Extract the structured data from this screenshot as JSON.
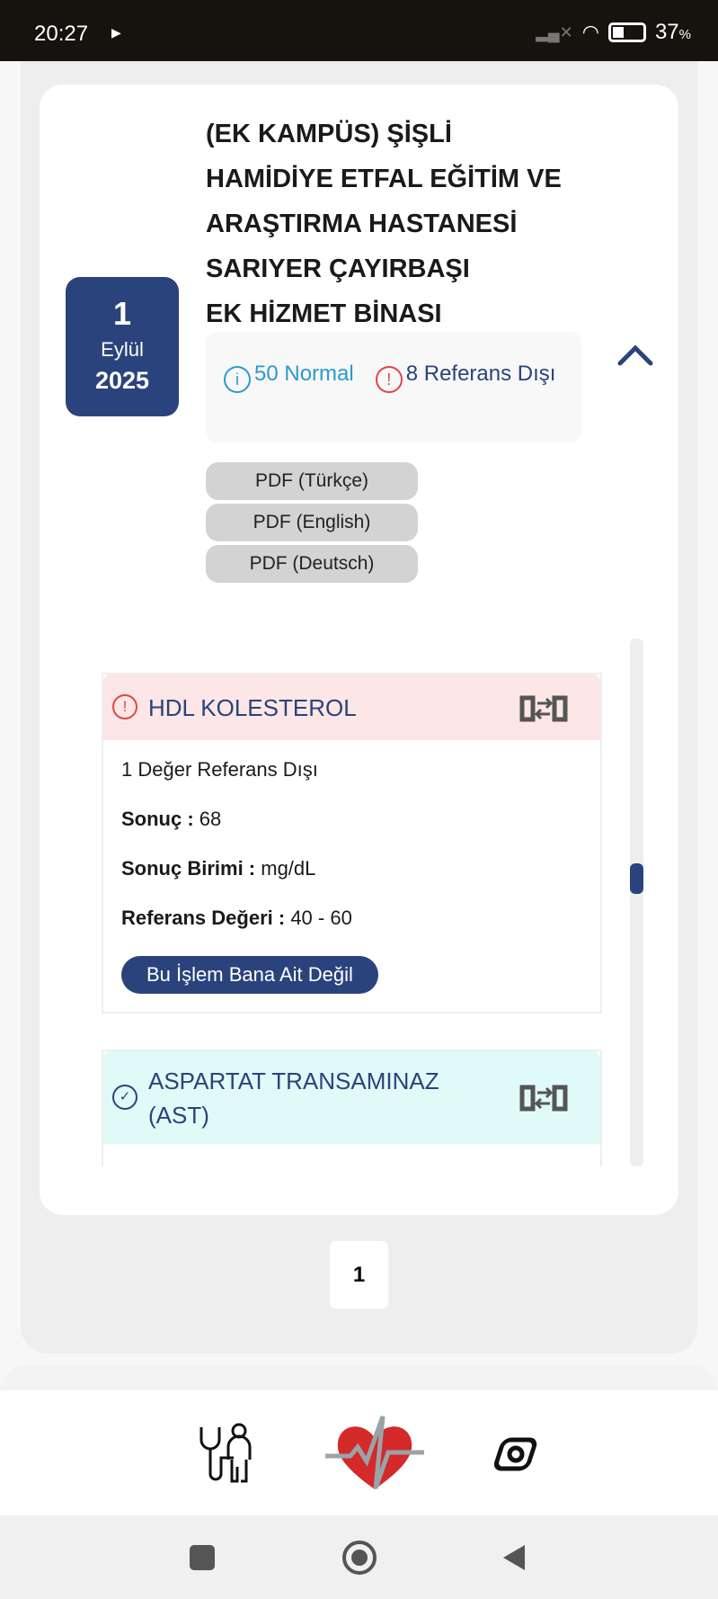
{
  "status_bar": {
    "time": "20:27",
    "battery": "37",
    "battery_unit": "%"
  },
  "visit": {
    "date": {
      "day": "1",
      "month": "Eylül",
      "year": "2025"
    },
    "hospital_lines": [
      "(EK KAMPÜS) ŞİŞLİ",
      "HAMİDİYE ETFAL EĞİTİM VE",
      "ARAŞTIRMA HASTANESİ",
      "SARIYER ÇAYIRBAŞI",
      "EK HİZMET BİNASI"
    ],
    "summary": {
      "normal": "50 Normal",
      "out_of_range": "8 Referans Dışı"
    },
    "pdf_buttons": [
      "PDF (Türkçe)",
      "PDF (English)",
      "PDF (Deutsch)"
    ]
  },
  "results": [
    {
      "name": "HDL KOLESTEROL",
      "status": "out",
      "status_color": "#fde6e6",
      "note": "1 Değer Referans Dışı",
      "result_label": "Sonuç :",
      "result": "68",
      "unit_label": "Sonuç Birimi :",
      "unit": "mg/dL",
      "ref_label": "Referans Değeri :",
      "ref": "40 - 60",
      "action": "Bu İşlem Bana Ait Değil"
    },
    {
      "name": "ASPARTAT TRANSAMINAZ (AST)",
      "status": "normal",
      "status_color": "#e0faf7"
    }
  ],
  "pagination": {
    "current": "1"
  },
  "colors": {
    "primary": "#2a437c",
    "info": "#2a9ad0",
    "alert": "#e04545"
  }
}
